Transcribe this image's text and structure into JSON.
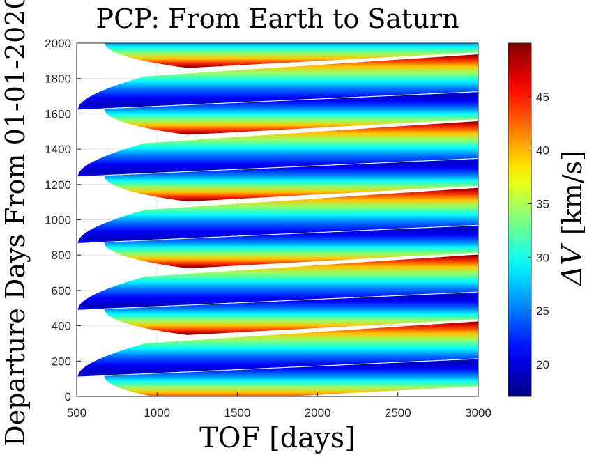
{
  "chart_data": {
    "type": "heatmap",
    "title": "PCP: From Earth to Saturn",
    "xlabel": "TOF [days]",
    "ylabel": "Departure Days From 01-01-2020",
    "colorbar_label_symbol": "ΔV",
    "colorbar_label_unit": "[km/s]",
    "xlim": [
      500,
      3000
    ],
    "ylim": [
      0,
      2000
    ],
    "x_ticks": [
      "500",
      "1000",
      "1500",
      "2000",
      "2500",
      "3000"
    ],
    "y_ticks": [
      "0",
      "200",
      "400",
      "600",
      "800",
      "1000",
      "1200",
      "1400",
      "1600",
      "1800",
      "2000"
    ],
    "colorbar_range": [
      17,
      50
    ],
    "colorbar_ticks": [
      "20",
      "25",
      "30",
      "35",
      "40",
      "45"
    ],
    "colormap": "jet",
    "grid": true,
    "synodic_period_days": 378,
    "bands": [
      {
        "departure_center": 110,
        "tip_tof": 505,
        "slope_per_day": 0.055
      },
      {
        "departure_center": 488,
        "tip_tof": 505,
        "slope_per_day": 0.055
      },
      {
        "departure_center": 866,
        "tip_tof": 505,
        "slope_per_day": 0.055
      },
      {
        "departure_center": 1244,
        "tip_tof": 505,
        "slope_per_day": 0.055
      },
      {
        "departure_center": 1622,
        "tip_tof": 505,
        "slope_per_day": 0.055
      },
      {
        "departure_center": 2000,
        "tip_tof": 505,
        "slope_per_day": 0.055
      }
    ]
  }
}
